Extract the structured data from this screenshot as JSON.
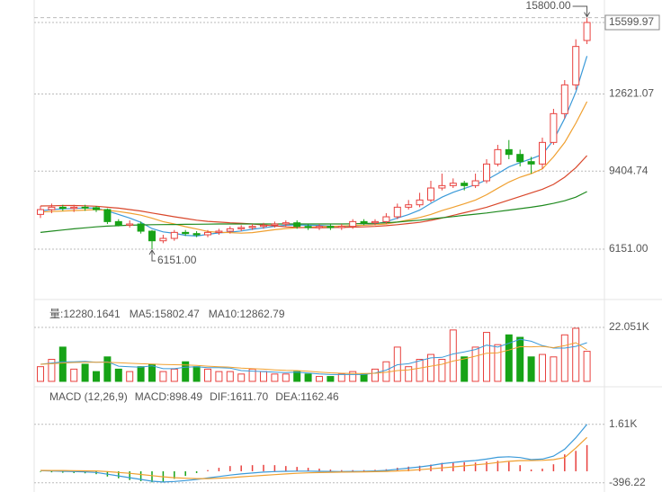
{
  "chart_data": {
    "type": "candlestick",
    "ylim": [
      4164,
      15975
    ],
    "yticks": [
      15599.97,
      12621.07,
      9404.74,
      {
        "value": 6151,
        "label": "6151.00"
      }
    ],
    "grid": true,
    "up_color": "#e8413e",
    "down_color": "#17a317",
    "open": [
      7600,
      7800,
      7900,
      7850,
      7900,
      7880,
      7800,
      7300,
      7150,
      7200,
      6900,
      6500,
      6600,
      6850,
      6800,
      6750,
      6850,
      6900,
      7000,
      7050,
      7100,
      7150,
      7200,
      7250,
      7100,
      7050,
      7100,
      7050,
      7100,
      7300,
      7250,
      7300,
      7500,
      7900,
      8000,
      8200,
      8700,
      8800,
      8900,
      8800,
      9000,
      9700,
      10300,
      10100,
      9800,
      9700,
      10600,
      11800,
      13000,
      14850
    ],
    "high": [
      7950,
      8050,
      8000,
      8000,
      8000,
      7950,
      7850,
      7400,
      7350,
      7300,
      6950,
      6750,
      6950,
      6950,
      6900,
      6950,
      7000,
      7100,
      7150,
      7200,
      7250,
      7300,
      7350,
      7350,
      7200,
      7200,
      7200,
      7200,
      7400,
      7400,
      7400,
      7650,
      8050,
      8200,
      8500,
      9000,
      9300,
      9100,
      9000,
      9300,
      9900,
      10500,
      10700,
      10300,
      10000,
      10800,
      12000,
      13200,
      14900,
      15800
    ],
    "low": [
      7450,
      7650,
      7750,
      7700,
      7750,
      7700,
      7200,
      7100,
      7050,
      6800,
      6151,
      6400,
      6500,
      6700,
      6650,
      6650,
      6750,
      6800,
      6900,
      6950,
      7000,
      7050,
      7100,
      7000,
      6950,
      6950,
      6950,
      6950,
      7000,
      7150,
      7150,
      7200,
      7400,
      7800,
      7900,
      8100,
      8600,
      8700,
      8600,
      8700,
      8900,
      9600,
      9900,
      9600,
      9300,
      9500,
      10500,
      11600,
      12800,
      14700
    ],
    "close": [
      7800,
      7900,
      7850,
      7900,
      7880,
      7800,
      7300,
      7150,
      7200,
      6900,
      6500,
      6600,
      6850,
      6800,
      6750,
      6850,
      6900,
      7000,
      7050,
      7100,
      7150,
      7200,
      7250,
      7100,
      7050,
      7100,
      7050,
      7100,
      7300,
      7250,
      7300,
      7500,
      7900,
      8000,
      8200,
      8700,
      8800,
      8900,
      8800,
      9000,
      9700,
      10300,
      10100,
      9800,
      9700,
      10600,
      11800,
      13000,
      14600,
      15599.97
    ],
    "lines": [
      {
        "color": "#3a9ad9",
        "values": [
          7750,
          7800,
          7830,
          7850,
          7870,
          7860,
          7740,
          7600,
          7450,
          7270,
          7010,
          6870,
          6810,
          6730,
          6700,
          6770,
          6830,
          6860,
          6910,
          6980,
          7040,
          7100,
          7150,
          7160,
          7150,
          7140,
          7110,
          7080,
          7120,
          7160,
          7200,
          7290,
          7450,
          7590,
          7780,
          8060,
          8320,
          8520,
          8680,
          8840,
          9040,
          9300,
          9580,
          9760,
          9920,
          10100,
          10700,
          11600,
          12700,
          14200
        ]
      },
      {
        "color": "#f0a030",
        "values": [
          7700,
          7720,
          7740,
          7760,
          7780,
          7800,
          7770,
          7720,
          7650,
          7570,
          7440,
          7300,
          7200,
          7090,
          6990,
          6890,
          6850,
          6840,
          6820,
          6840,
          6900,
          6960,
          7010,
          7040,
          7060,
          7090,
          7100,
          7110,
          7140,
          7150,
          7170,
          7200,
          7280,
          7370,
          7470,
          7600,
          7760,
          7900,
          8040,
          8200,
          8420,
          8690,
          8950,
          9150,
          9300,
          9500,
          10000,
          10600,
          11400,
          12300
        ]
      },
      {
        "color": "#d9472b",
        "values": [
          7950,
          7960,
          7970,
          7970,
          7960,
          7940,
          7900,
          7860,
          7800,
          7740,
          7660,
          7580,
          7500,
          7430,
          7360,
          7310,
          7280,
          7250,
          7230,
          7200,
          7160,
          7120,
          7080,
          7060,
          7050,
          7040,
          7050,
          7060,
          7070,
          7080,
          7100,
          7130,
          7170,
          7220,
          7270,
          7350,
          7450,
          7560,
          7670,
          7780,
          7900,
          8050,
          8200,
          8350,
          8500,
          8650,
          8850,
          9150,
          9550,
          10050
        ]
      },
      {
        "color": "#1f8a1f",
        "values": [
          6850,
          6900,
          6950,
          7000,
          7040,
          7080,
          7110,
          7130,
          7150,
          7160,
          7170,
          7175,
          7180,
          7185,
          7190,
          7195,
          7200,
          7200,
          7200,
          7200,
          7200,
          7200,
          7200,
          7200,
          7200,
          7200,
          7200,
          7200,
          7210,
          7220,
          7230,
          7250,
          7280,
          7320,
          7360,
          7410,
          7460,
          7510,
          7560,
          7610,
          7660,
          7720,
          7780,
          7840,
          7900,
          7970,
          8060,
          8170,
          8320,
          8550
        ]
      }
    ],
    "annotations": [
      {
        "value": 15800,
        "label": "15800.00"
      },
      {
        "value": 6151,
        "label": "6151.00"
      }
    ],
    "volume": {
      "header": [
        {
          "text": "量:12280.1641",
          "color": "#555"
        },
        {
          "text": "MA5:15802.47",
          "color": "#3a9ad9"
        },
        {
          "text": "MA10:12862.79",
          "color": "#f0a030"
        }
      ],
      "ylim": [
        0,
        30871
      ],
      "yticks": [
        {
          "value": 22051,
          "label": "22.051K"
        }
      ],
      "values": [
        6000,
        9000,
        14000,
        5000,
        7000,
        4000,
        10000,
        5000,
        4000,
        6000,
        7000,
        4000,
        5000,
        8000,
        6000,
        5000,
        4000,
        4000,
        3000,
        5000,
        4000,
        3000,
        3000,
        4000,
        3000,
        2000,
        2000,
        3000,
        4000,
        3000,
        5000,
        8000,
        14000,
        6000,
        9000,
        11000,
        9000,
        21000,
        10000,
        14000,
        20000,
        15000,
        19000,
        18000,
        10000,
        11000,
        10000,
        19000,
        21700,
        12280.1641
      ],
      "lines": [
        {
          "color": "#3a9ad9",
          "values": [
            7000,
            7500,
            8000,
            8000,
            8200,
            7800,
            8000,
            6200,
            6000,
            5800,
            6400,
            5200,
            5200,
            5800,
            6000,
            5600,
            5600,
            5400,
            4400,
            4200,
            4000,
            3800,
            3600,
            3800,
            3400,
            3000,
            2800,
            2800,
            2800,
            2800,
            3400,
            4600,
            6800,
            7200,
            8400,
            9600,
            9800,
            11200,
            12000,
            13000,
            14800,
            14000,
            15600,
            17200,
            16400,
            14600,
            13600,
            13600,
            14300,
            15802.47
          ]
        },
        {
          "color": "#f0a030",
          "values": [
            7000,
            7200,
            7500,
            7700,
            7800,
            7800,
            7800,
            7600,
            7400,
            7200,
            7100,
            6900,
            6800,
            6700,
            6500,
            6200,
            6000,
            5800,
            5400,
            5200,
            5000,
            4700,
            4500,
            4400,
            4100,
            3800,
            3500,
            3300,
            3200,
            3200,
            3300,
            3700,
            4400,
            4700,
            5400,
            6200,
            7000,
            8300,
            9200,
            10300,
            11500,
            11700,
            12800,
            14200,
            14100,
            14300,
            13800,
            14600,
            15800,
            12862.79
          ]
        }
      ]
    },
    "macd": {
      "header": [
        {
          "text": "MACD  (12,26,9)",
          "color": "#444"
        },
        {
          "text": "MACD:898.49",
          "color": "#e8413e"
        },
        {
          "text": "DIF:1611.70",
          "color": "#3a9ad9"
        },
        {
          "text": "DEA:1162.46",
          "color": "#f0a030"
        }
      ],
      "ylim": [
        -650,
        2130
      ],
      "yticks": [
        {
          "value": 1611.7,
          "label": "1.61K"
        },
        -396.22
      ],
      "histogram": [
        -20,
        -36,
        -50,
        -60,
        -70,
        -100,
        -180,
        -240,
        -300,
        -340,
        -380,
        -360,
        -260,
        -160,
        -60,
        40,
        120,
        180,
        200,
        210,
        220,
        210,
        180,
        150,
        120,
        90,
        60,
        40,
        40,
        40,
        50,
        70,
        120,
        160,
        190,
        230,
        290,
        300,
        310,
        300,
        330,
        360,
        320,
        210,
        60,
        90,
        240,
        580,
        700,
        898.49
      ],
      "lines": [
        {
          "color": "#3a9ad9",
          "values": [
            20,
            10,
            0,
            -10,
            -20,
            -40,
            -100,
            -160,
            -220,
            -280,
            -340,
            -370,
            -350,
            -320,
            -280,
            -230,
            -180,
            -130,
            -90,
            -60,
            -30,
            -10,
            0,
            5,
            5,
            0,
            -5,
            -10,
            -5,
            0,
            10,
            30,
            70,
            110,
            150,
            200,
            260,
            300,
            340,
            370,
            420,
            480,
            500,
            470,
            400,
            420,
            520,
            760,
            1150,
            1611.7
          ]
        },
        {
          "color": "#f0a030",
          "values": [
            30,
            28,
            25,
            20,
            15,
            10,
            -10,
            -40,
            -70,
            -110,
            -150,
            -190,
            -220,
            -240,
            -250,
            -250,
            -240,
            -220,
            -190,
            -165,
            -140,
            -115,
            -90,
            -70,
            -55,
            -45,
            -35,
            -30,
            -25,
            -20,
            -15,
            -5,
            10,
            30,
            55,
            85,
            115,
            150,
            185,
            220,
            255,
            300,
            340,
            365,
            370,
            375,
            400,
            470,
            800,
            1162.46
          ]
        }
      ]
    }
  }
}
